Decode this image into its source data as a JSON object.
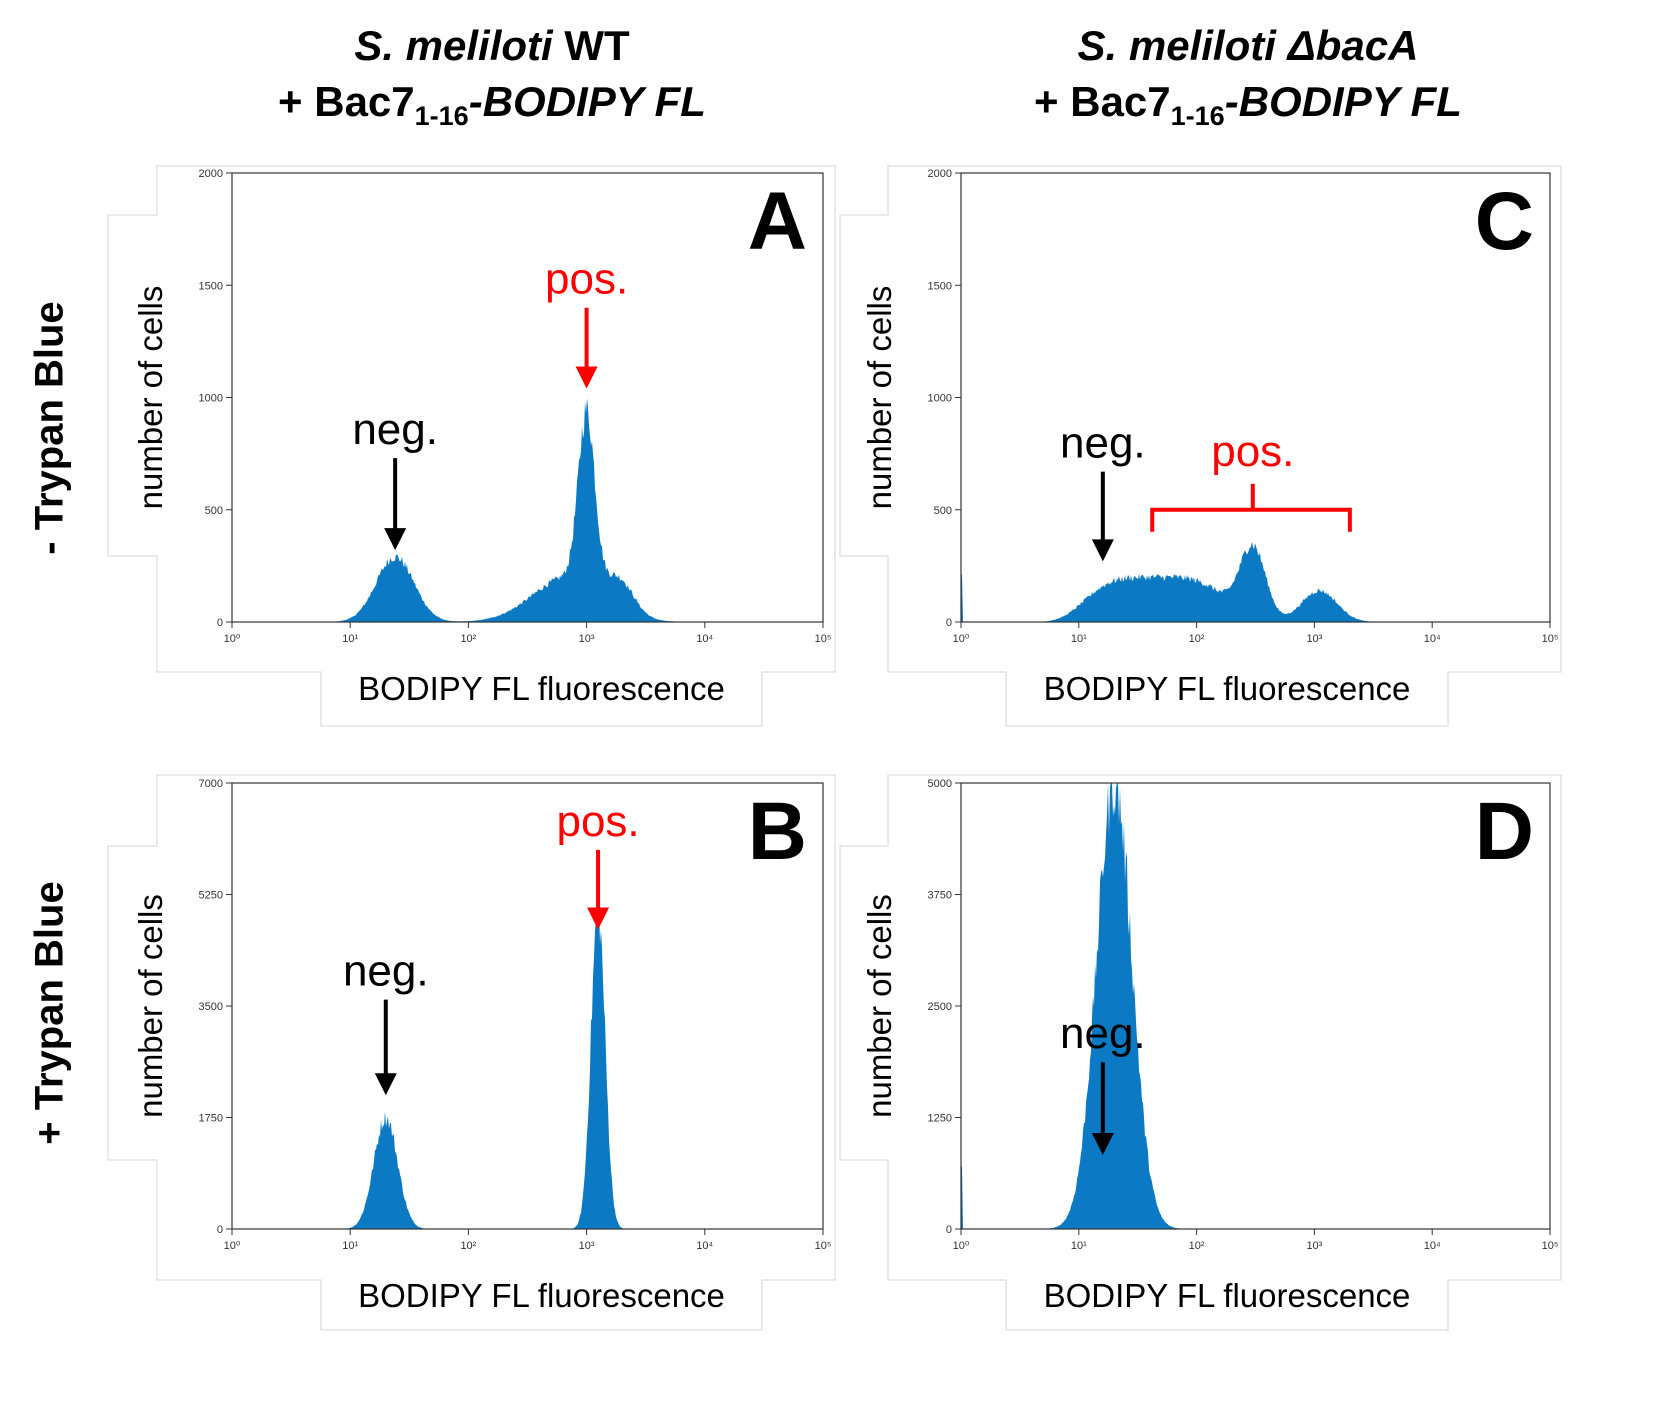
{
  "column_titles": [
    {
      "species": "S. meliloti",
      "strain": "WT",
      "strain_italic": false,
      "line2_prefix": "+ Bac7",
      "subscript": "1-16",
      "line2_suffix": "-BODIPY FL"
    },
    {
      "species": "S. meliloti",
      "strain": "ΔbacA",
      "strain_italic": true,
      "line2_prefix": "+ Bac7",
      "subscript": "1-16",
      "line2_suffix": "-BODIPY FL"
    }
  ],
  "row_labels": [
    "- Trypan Blue",
    "+ Trypan Blue"
  ],
  "colors": {
    "histogram": "#0B79C3",
    "neg_arrow": "#000000",
    "pos_arrow": "#ff0000",
    "axis": "#333333"
  },
  "chart_data": [
    {
      "type": "area",
      "panel": "A",
      "xscale": "log",
      "xlim": [
        1,
        100000
      ],
      "ylim": [
        0,
        2000
      ],
      "xlabel": "BODIPY FL fluorescence",
      "ylabel": "number of cells",
      "xtick_labels": [
        "10⁰",
        "10¹",
        "10²",
        "10³",
        "10⁴",
        "10⁵"
      ],
      "ytick_labels": [
        "0",
        "500",
        "1000",
        "1500",
        "2000"
      ],
      "yticks": [
        0,
        500,
        1000,
        1500,
        2000
      ],
      "peaks": [
        {
          "center": 24,
          "height": 290,
          "width": 0.16,
          "power": 2
        },
        {
          "center": 1000,
          "height": 760,
          "width": 0.07,
          "power": 2
        },
        {
          "center": 700,
          "height": 200,
          "width": 0.3,
          "power": 2
        },
        {
          "center": 1900,
          "height": 130,
          "width": 0.12,
          "power": 2
        }
      ],
      "annotations": [
        {
          "text": "neg.",
          "color": "neg",
          "x": 24,
          "y_top": 730,
          "y_tip": 320
        },
        {
          "text": "pos.",
          "color": "pos",
          "x": 1000,
          "y_top": 1400,
          "y_tip": 1040
        }
      ]
    },
    {
      "type": "area",
      "panel": "B",
      "xscale": "log",
      "xlim": [
        1,
        100000
      ],
      "ylim": [
        0,
        7000
      ],
      "xlabel": "BODIPY FL fluorescence",
      "ylabel": "number of cells",
      "xtick_labels": [
        "10⁰",
        "10¹",
        "10²",
        "10³",
        "10⁴",
        "10⁵"
      ],
      "ytick_labels": [
        "0",
        "1750",
        "3500",
        "5250",
        "7000"
      ],
      "yticks": [
        0,
        1750,
        3500,
        5250,
        7000
      ],
      "peaks": [
        {
          "center": 20,
          "height": 1750,
          "width": 0.1,
          "power": 2
        },
        {
          "center": 1250,
          "height": 5000,
          "width": 0.06,
          "power": 2
        }
      ],
      "annotations": [
        {
          "text": "neg.",
          "color": "neg",
          "x": 20,
          "y_top": 3600,
          "y_tip": 2100
        },
        {
          "text": "pos.",
          "color": "pos",
          "x": 1250,
          "y_top": 5950,
          "y_tip": 4700
        }
      ]
    },
    {
      "type": "area",
      "panel": "C",
      "xscale": "log",
      "xlim": [
        1,
        100000
      ],
      "ylim": [
        0,
        2000
      ],
      "xlabel": "BODIPY FL fluorescence",
      "ylabel": "number of cells",
      "xtick_labels": [
        "10⁰",
        "10¹",
        "10²",
        "10³",
        "10⁴",
        "10⁵"
      ],
      "ytick_labels": [
        "0",
        "500",
        "1000",
        "1500",
        "2000"
      ],
      "yticks": [
        0,
        500,
        1000,
        1500,
        2000
      ],
      "peaks": [
        {
          "center": 45,
          "height": 200,
          "width": 0.55,
          "power": 4
        },
        {
          "center": 300,
          "height": 330,
          "width": 0.11,
          "power": 2
        },
        {
          "center": 1100,
          "height": 140,
          "width": 0.15,
          "power": 2
        }
      ],
      "spike_at_min": 210,
      "annotations": [
        {
          "text": "neg.",
          "color": "neg",
          "x": 16,
          "y_top": 670,
          "y_tip": 270
        }
      ],
      "bracket": {
        "text": "pos.",
        "x_start": 42,
        "x_end": 2000,
        "x_tip": 300,
        "y": 500
      }
    },
    {
      "type": "area",
      "panel": "D",
      "xscale": "log",
      "xlim": [
        1,
        100000
      ],
      "ylim": [
        0,
        5000
      ],
      "xlabel": "BODIPY FL fluorescence",
      "ylabel": "number of cells",
      "xtick_labels": [
        "10⁰",
        "10¹",
        "10²",
        "10³",
        "10⁴",
        "10⁵"
      ],
      "ytick_labels": [
        "0",
        "1250",
        "2500",
        "3750",
        "5000"
      ],
      "yticks": [
        0,
        1250,
        2500,
        3750,
        5000
      ],
      "peaks": [
        {
          "center": 20,
          "height": 5000,
          "width": 0.15,
          "power": 2
        }
      ],
      "spike_at_min": 700,
      "annotations": [
        {
          "text": "neg.",
          "color": "neg",
          "x": 16,
          "y_top": 1870,
          "y_tip": 830
        }
      ]
    }
  ]
}
